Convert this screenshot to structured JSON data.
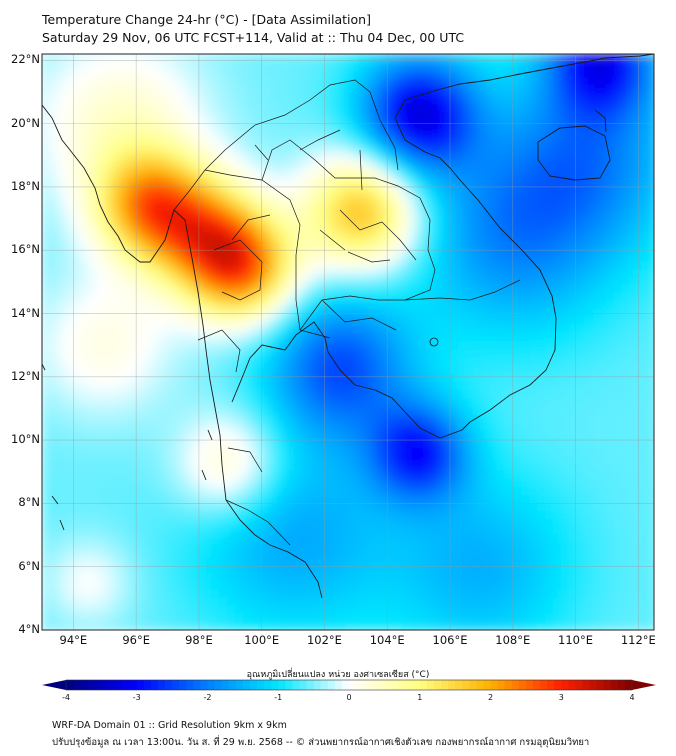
{
  "header": {
    "title_line1": "Temperature Change 24-hr (°C) - [Data Assimilation]",
    "title_line2": "Saturday 29 Nov, 06 UTC FCST+114, Valid at :: Thu 04 Dec, 00 UTC"
  },
  "map": {
    "lat_labels": [
      "22°N",
      "20°N",
      "18°N",
      "16°N",
      "14°N",
      "12°N",
      "10°N",
      "8°N",
      "6°N",
      "4°N"
    ],
    "lon_labels": [
      "94°E",
      "96°E",
      "98°E",
      "100°E",
      "102°E",
      "104°E",
      "106°E",
      "108°E",
      "110°E",
      "112°E"
    ],
    "extent": {
      "lon_min": 93,
      "lon_max": 112.5,
      "lat_min": 4,
      "lat_max": 22.2
    },
    "anomalies": [
      {
        "lon": 96.4,
        "lat": 17.4,
        "value": 2.4,
        "spread": 1.2
      },
      {
        "lon": 98.2,
        "lat": 16.5,
        "value": 2.2,
        "spread": 1.3
      },
      {
        "lon": 99.4,
        "lat": 15.4,
        "value": 2.6,
        "spread": 1.2
      },
      {
        "lon": 103.2,
        "lat": 17.2,
        "value": 2.4,
        "spread": 1.3
      },
      {
        "lon": 95.5,
        "lat": 20.0,
        "value": 1.0,
        "spread": 2.0
      },
      {
        "lon": 99.0,
        "lat": 9.2,
        "value": 1.2,
        "spread": 1.2
      },
      {
        "lon": 95.0,
        "lat": 13.0,
        "value": 0.8,
        "spread": 1.6
      },
      {
        "lon": 105.0,
        "lat": 20.3,
        "value": -2.6,
        "spread": 1.3
      },
      {
        "lon": 110.8,
        "lat": 22.0,
        "value": -2.2,
        "spread": 1.2
      },
      {
        "lon": 105.0,
        "lat": 9.6,
        "value": -2.1,
        "spread": 1.1
      },
      {
        "lon": 102.5,
        "lat": 12.3,
        "value": -1.8,
        "spread": 1.6
      },
      {
        "lon": 108.0,
        "lat": 16.5,
        "value": -1.3,
        "spread": 2.2
      },
      {
        "lon": 110.5,
        "lat": 19.0,
        "value": -1.2,
        "spread": 2.0
      },
      {
        "lon": 101.0,
        "lat": 7.0,
        "value": -1.0,
        "spread": 2.2
      },
      {
        "lon": 107.0,
        "lat": 6.0,
        "value": -0.9,
        "spread": 2.0
      },
      {
        "lon": 94.5,
        "lat": 5.5,
        "value": 0.6,
        "spread": 1.0
      }
    ]
  },
  "colorbar": {
    "title": "อุณหภูมิเปลี่ยนแปลง หน่วย องศาเซลเซียส (°C)",
    "min": -4,
    "max": 4,
    "ticks": [
      "-4",
      "-3",
      "-2",
      "-1",
      "0",
      "1",
      "2",
      "3",
      "4"
    ],
    "colors": [
      "#00007f",
      "#0000ff",
      "#0080ff",
      "#00e5ff",
      "#ffffff",
      "#ffff80",
      "#ffb000",
      "#ff2000",
      "#7f0000"
    ]
  },
  "footer": {
    "line1": "WRF-DA Domain 01 :: Grid Resolution 9km x 9km",
    "line2": "ปรับปรุงข้อมูล ณ เวลา 13:00น. วัน ส. ที่ 29 พ.ย. 2568 -- © ส่วนพยากรณ์อากาศเชิงตัวเลข กองพยากรณ์อากาศ กรมอุตุนิยมวิทยา"
  }
}
